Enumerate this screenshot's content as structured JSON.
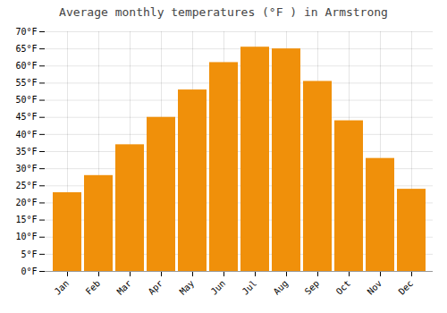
{
  "chart_data": {
    "type": "bar",
    "title": "Average monthly temperatures (°F ) in Armstrong",
    "categories": [
      "Jan",
      "Feb",
      "Mar",
      "Apr",
      "May",
      "Jun",
      "Jul",
      "Aug",
      "Sep",
      "Oct",
      "Nov",
      "Dec"
    ],
    "values": [
      23,
      28,
      37,
      45,
      53,
      61,
      65.5,
      65,
      55.5,
      44,
      33,
      24
    ],
    "color": "#F0900A",
    "ylim": [
      0,
      70
    ],
    "yticks": [
      {
        "value": 0,
        "label": "0°F"
      },
      {
        "value": 5,
        "label": "5°F"
      },
      {
        "value": 10,
        "label": "10°F"
      },
      {
        "value": 15,
        "label": "15°F"
      },
      {
        "value": 20,
        "label": "20°F"
      },
      {
        "value": 25,
        "label": "25°F"
      },
      {
        "value": 30,
        "label": "30°F"
      },
      {
        "value": 35,
        "label": "35°F"
      },
      {
        "value": 40,
        "label": "40°F"
      },
      {
        "value": 45,
        "label": "45°F"
      },
      {
        "value": 50,
        "label": "50°F"
      },
      {
        "value": 55,
        "label": "55°F"
      },
      {
        "value": 60,
        "label": "60°F"
      },
      {
        "value": 65,
        "label": "65°F"
      },
      {
        "value": 70,
        "label": "70°F"
      }
    ],
    "grid": true
  }
}
